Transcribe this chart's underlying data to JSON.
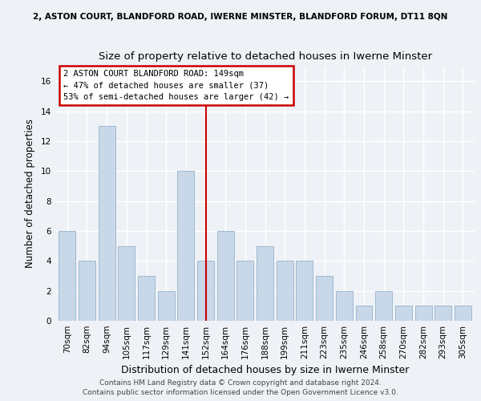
{
  "suptitle": "2, ASTON COURT, BLANDFORD ROAD, IWERNE MINSTER, BLANDFORD FORUM, DT11 8QN",
  "title": "Size of property relative to detached houses in Iwerne Minster",
  "xlabel": "Distribution of detached houses by size in Iwerne Minster",
  "ylabel": "Number of detached properties",
  "bin_labels": [
    "70sqm",
    "82sqm",
    "94sqm",
    "105sqm",
    "117sqm",
    "129sqm",
    "141sqm",
    "152sqm",
    "164sqm",
    "176sqm",
    "188sqm",
    "199sqm",
    "211sqm",
    "223sqm",
    "235sqm",
    "246sqm",
    "258sqm",
    "270sqm",
    "282sqm",
    "293sqm",
    "305sqm"
  ],
  "bar_heights": [
    6,
    4,
    13,
    5,
    3,
    2,
    10,
    4,
    6,
    4,
    5,
    4,
    4,
    3,
    2,
    1,
    2,
    1,
    1,
    1,
    1
  ],
  "bar_color": "#c8d8e8",
  "bar_edge_color": "#a0b8d0",
  "vline_x_index": 7,
  "vline_color": "#cc0000",
  "annotation_line1": "2 ASTON COURT BLANDFORD ROAD: 149sqm",
  "annotation_line2": "← 47% of detached houses are smaller (37)",
  "annotation_line3": "53% of semi-detached houses are larger (42) →",
  "annotation_box_color": "#ffffff",
  "annotation_box_edge_color": "#cc0000",
  "ylim": [
    0,
    17
  ],
  "yticks": [
    0,
    2,
    4,
    6,
    8,
    10,
    12,
    14,
    16
  ],
  "footer_line1": "Contains HM Land Registry data © Crown copyright and database right 2024.",
  "footer_line2": "Contains public sector information licensed under the Open Government Licence v3.0.",
  "background_color": "#eef2f7",
  "grid_color": "#ffffff",
  "suptitle_fontsize": 7.5,
  "title_fontsize": 9.5,
  "xlabel_fontsize": 9,
  "ylabel_fontsize": 8.5,
  "tick_fontsize": 7.5,
  "footer_fontsize": 6.5
}
